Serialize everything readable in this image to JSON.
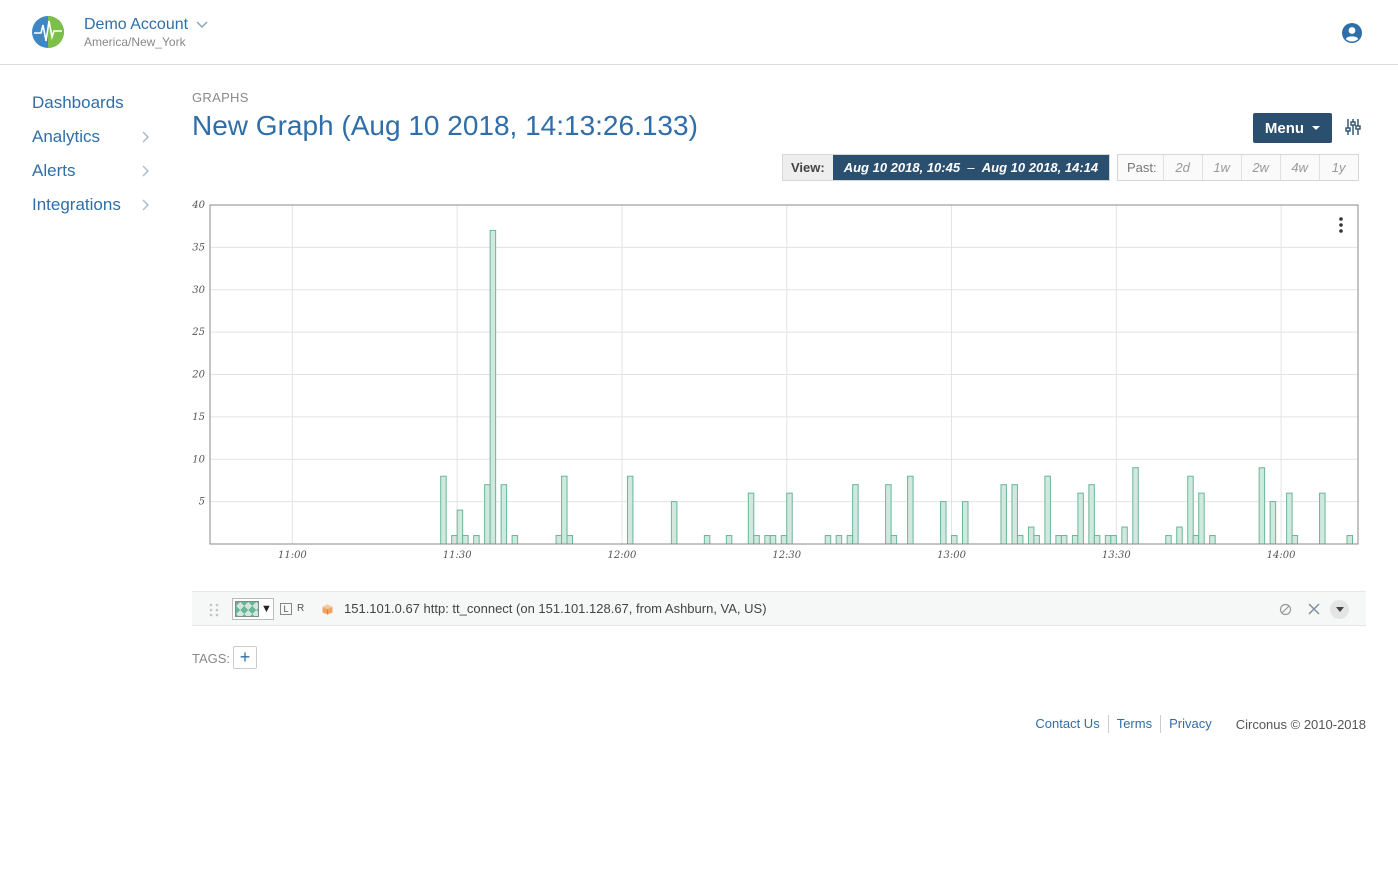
{
  "header": {
    "account_name": "Demo Account",
    "timezone": "America/New_York"
  },
  "sidebar": {
    "items": [
      {
        "label": "Dashboards",
        "has_chevron": false
      },
      {
        "label": "Analytics",
        "has_chevron": true
      },
      {
        "label": "Alerts",
        "has_chevron": true
      },
      {
        "label": "Integrations",
        "has_chevron": true
      }
    ]
  },
  "page": {
    "breadcrumb": "GRAPHS",
    "title": "New Graph (Aug 10 2018, 14:13:26.133)",
    "menu_label": "Menu"
  },
  "view": {
    "label": "View:",
    "start": "Aug 10 2018, 10:45",
    "separator": "–",
    "end": "Aug 10 2018, 14:14"
  },
  "past": {
    "label": "Past:",
    "options": [
      "2d",
      "1w",
      "2w",
      "4w",
      "1y"
    ]
  },
  "chart_data": {
    "type": "bar",
    "x_unit": "time (HH:MM)",
    "xlim": [
      "10:45",
      "14:14"
    ],
    "ylim": [
      0,
      40
    ],
    "y_ticks": [
      5,
      10,
      15,
      20,
      25,
      30,
      35,
      40
    ],
    "x_ticks": [
      "11:00",
      "11:30",
      "12:00",
      "12:30",
      "13:00",
      "13:30",
      "14:00"
    ],
    "grid": true,
    "series": [
      {
        "name": "151.101.0.67 http: tt_connect (on 151.101.128.67, from Ashburn, VA, US)",
        "color": "#6bb59a",
        "fill": "#cfe9df",
        "points": [
          {
            "t": "11:27",
            "v": 8
          },
          {
            "t": "11:29",
            "v": 1
          },
          {
            "t": "11:30",
            "v": 4
          },
          {
            "t": "11:31",
            "v": 1
          },
          {
            "t": "11:33",
            "v": 1
          },
          {
            "t": "11:35",
            "v": 7
          },
          {
            "t": "11:36",
            "v": 37
          },
          {
            "t": "11:38",
            "v": 7
          },
          {
            "t": "11:40",
            "v": 1
          },
          {
            "t": "11:48",
            "v": 1
          },
          {
            "t": "11:49",
            "v": 8
          },
          {
            "t": "11:50",
            "v": 1
          },
          {
            "t": "12:01",
            "v": 8
          },
          {
            "t": "12:09",
            "v": 5
          },
          {
            "t": "12:15",
            "v": 1
          },
          {
            "t": "12:19",
            "v": 1
          },
          {
            "t": "12:23",
            "v": 6
          },
          {
            "t": "12:24",
            "v": 1
          },
          {
            "t": "12:26",
            "v": 1
          },
          {
            "t": "12:27",
            "v": 1
          },
          {
            "t": "12:29",
            "v": 1
          },
          {
            "t": "12:30",
            "v": 6
          },
          {
            "t": "12:37",
            "v": 1
          },
          {
            "t": "12:39",
            "v": 1
          },
          {
            "t": "12:41",
            "v": 1
          },
          {
            "t": "12:42",
            "v": 7
          },
          {
            "t": "12:48",
            "v": 7
          },
          {
            "t": "12:49",
            "v": 1
          },
          {
            "t": "12:52",
            "v": 8
          },
          {
            "t": "12:58",
            "v": 5
          },
          {
            "t": "13:00",
            "v": 1
          },
          {
            "t": "13:02",
            "v": 5
          },
          {
            "t": "13:09",
            "v": 7
          },
          {
            "t": "13:11",
            "v": 7
          },
          {
            "t": "13:12",
            "v": 1
          },
          {
            "t": "13:14",
            "v": 2
          },
          {
            "t": "13:15",
            "v": 1
          },
          {
            "t": "13:17",
            "v": 8
          },
          {
            "t": "13:19",
            "v": 1
          },
          {
            "t": "13:20",
            "v": 1
          },
          {
            "t": "13:22",
            "v": 1
          },
          {
            "t": "13:23",
            "v": 6
          },
          {
            "t": "13:25",
            "v": 7
          },
          {
            "t": "13:26",
            "v": 1
          },
          {
            "t": "13:28",
            "v": 1
          },
          {
            "t": "13:29",
            "v": 1
          },
          {
            "t": "13:31",
            "v": 2
          },
          {
            "t": "13:33",
            "v": 9
          },
          {
            "t": "13:39",
            "v": 1
          },
          {
            "t": "13:41",
            "v": 2
          },
          {
            "t": "13:43",
            "v": 8
          },
          {
            "t": "13:44",
            "v": 1
          },
          {
            "t": "13:45",
            "v": 6
          },
          {
            "t": "13:47",
            "v": 1
          },
          {
            "t": "13:56",
            "v": 9
          },
          {
            "t": "13:58",
            "v": 5
          },
          {
            "t": "14:01",
            "v": 6
          },
          {
            "t": "14:02",
            "v": 1
          },
          {
            "t": "14:07",
            "v": 6
          },
          {
            "t": "14:12",
            "v": 1
          }
        ]
      }
    ]
  },
  "legend": {
    "axis_left": "L",
    "axis_right": "R",
    "metric": "151.101.0.67 http: tt_connect (on 151.101.128.67, from Ashburn, VA, US)"
  },
  "tags": {
    "label": "TAGS:",
    "add": "+"
  },
  "footer": {
    "links": [
      "Contact Us",
      "Terms",
      "Privacy"
    ],
    "copyright": "Circonus © 2010-2018"
  }
}
